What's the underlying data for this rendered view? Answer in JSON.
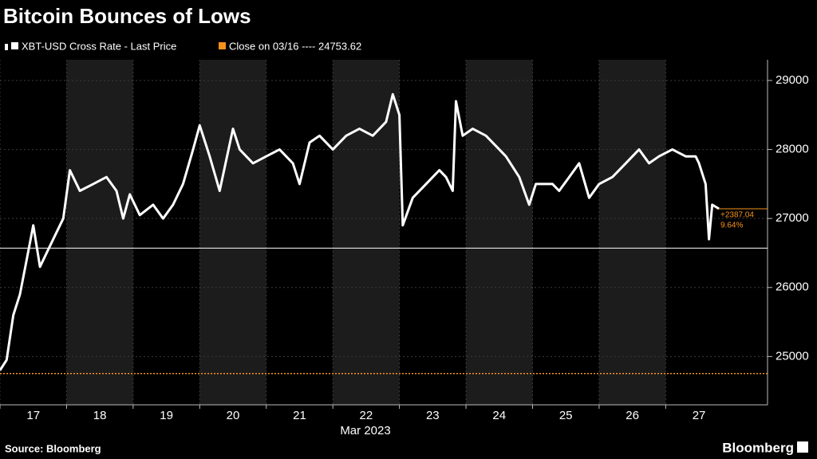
{
  "chart_data": {
    "type": "line",
    "title": "Bitcoin Bounces of Lows",
    "x_label": "Mar 2023",
    "source": "Source: Bloomberg",
    "brand": "Bloomberg",
    "xlim": [
      16.5,
      28.03
    ],
    "xticks": [
      17,
      18,
      19,
      20,
      21,
      22,
      23,
      24,
      25,
      26,
      27
    ],
    "ylim": [
      24300,
      29300
    ],
    "yticks": [
      25000,
      26000,
      27000,
      28000,
      29000
    ],
    "grid": true,
    "series": [
      {
        "name": "XBT-USD Cross Rate - Last Price",
        "color": "#ffffff",
        "x": [
          16.5,
          16.6,
          16.7,
          16.8,
          16.9,
          17.0,
          17.1,
          17.2,
          17.3,
          17.45,
          17.55,
          17.7,
          17.9,
          18.1,
          18.25,
          18.35,
          18.45,
          18.6,
          18.8,
          18.95,
          19.1,
          19.25,
          19.4,
          19.5,
          19.65,
          19.8,
          20.0,
          20.1,
          20.3,
          20.5,
          20.7,
          20.9,
          21.0,
          21.15,
          21.3,
          21.5,
          21.7,
          21.9,
          22.1,
          22.3,
          22.4,
          22.5,
          22.55,
          22.7,
          22.9,
          23.1,
          23.2,
          23.3,
          23.35,
          23.45,
          23.6,
          23.8,
          24.0,
          24.1,
          24.3,
          24.45,
          24.55,
          24.8,
          24.9,
          25.05,
          25.2,
          25.35,
          25.5,
          25.7,
          25.9,
          26.1,
          26.25,
          26.4,
          26.6,
          26.8,
          26.95,
          27.0,
          27.1,
          27.15,
          27.2,
          27.3
        ],
        "values": [
          24800,
          24950,
          25600,
          25900,
          26400,
          26900,
          26300,
          26500,
          26700,
          27000,
          27700,
          27400,
          27500,
          27600,
          27400,
          27000,
          27350,
          27050,
          27200,
          27000,
          27200,
          27500,
          28000,
          28350,
          27900,
          27400,
          28300,
          28000,
          27800,
          27900,
          28000,
          27800,
          27500,
          28100,
          28200,
          28000,
          28200,
          28300,
          28200,
          28400,
          28800,
          28500,
          26900,
          27300,
          27500,
          27700,
          27600,
          27400,
          28700,
          28200,
          28300,
          28200,
          28000,
          27900,
          27600,
          27200,
          27500,
          27500,
          27400,
          27600,
          27800,
          27300,
          27500,
          27600,
          27800,
          28000,
          27800,
          27900,
          28000,
          27900,
          27900,
          27800,
          27500,
          26700,
          27200,
          27140.66
        ]
      }
    ],
    "reference_line": {
      "name": "Close on 03/16 ---- 24753.62",
      "value": 24753.62,
      "color": "#f7931a"
    },
    "low_line": 26570,
    "change": {
      "value": 2387.04,
      "label": "+2387.04"
    },
    "change_pct": {
      "value": 9.64,
      "label": "9.64%"
    }
  }
}
